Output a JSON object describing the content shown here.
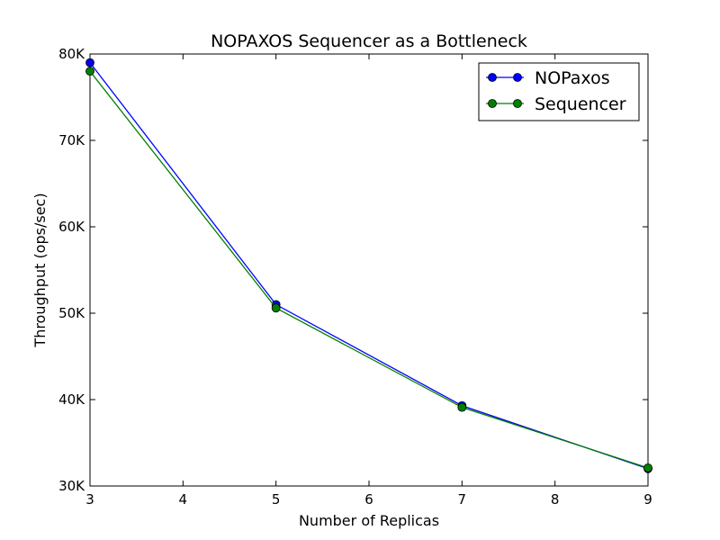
{
  "chart_data": {
    "type": "line",
    "title": "NOPAXOS Sequencer as a Bottleneck",
    "xlabel": "Number of Replicas",
    "ylabel": "Throughput (ops/sec)",
    "xlim": [
      3,
      9
    ],
    "ylim": [
      30000,
      80000
    ],
    "x_ticks": [
      3,
      4,
      5,
      6,
      7,
      8,
      9
    ],
    "x_tick_labels": [
      "3",
      "4",
      "5",
      "6",
      "7",
      "8",
      "9"
    ],
    "y_ticks": [
      30000,
      40000,
      50000,
      60000,
      70000,
      80000
    ],
    "y_tick_labels": [
      "30K",
      "40K",
      "50K",
      "60K",
      "70K",
      "80K"
    ],
    "grid": false,
    "legend_position": "top-right",
    "series": [
      {
        "name": "NOPaxos",
        "color": "#0000ff",
        "x": [
          3,
          5,
          7,
          9
        ],
        "values": [
          79000,
          51000,
          39300,
          32000
        ]
      },
      {
        "name": "Sequencer",
        "color": "#008000",
        "x": [
          3,
          5,
          7,
          9
        ],
        "values": [
          78000,
          50600,
          39100,
          32100
        ]
      }
    ]
  }
}
